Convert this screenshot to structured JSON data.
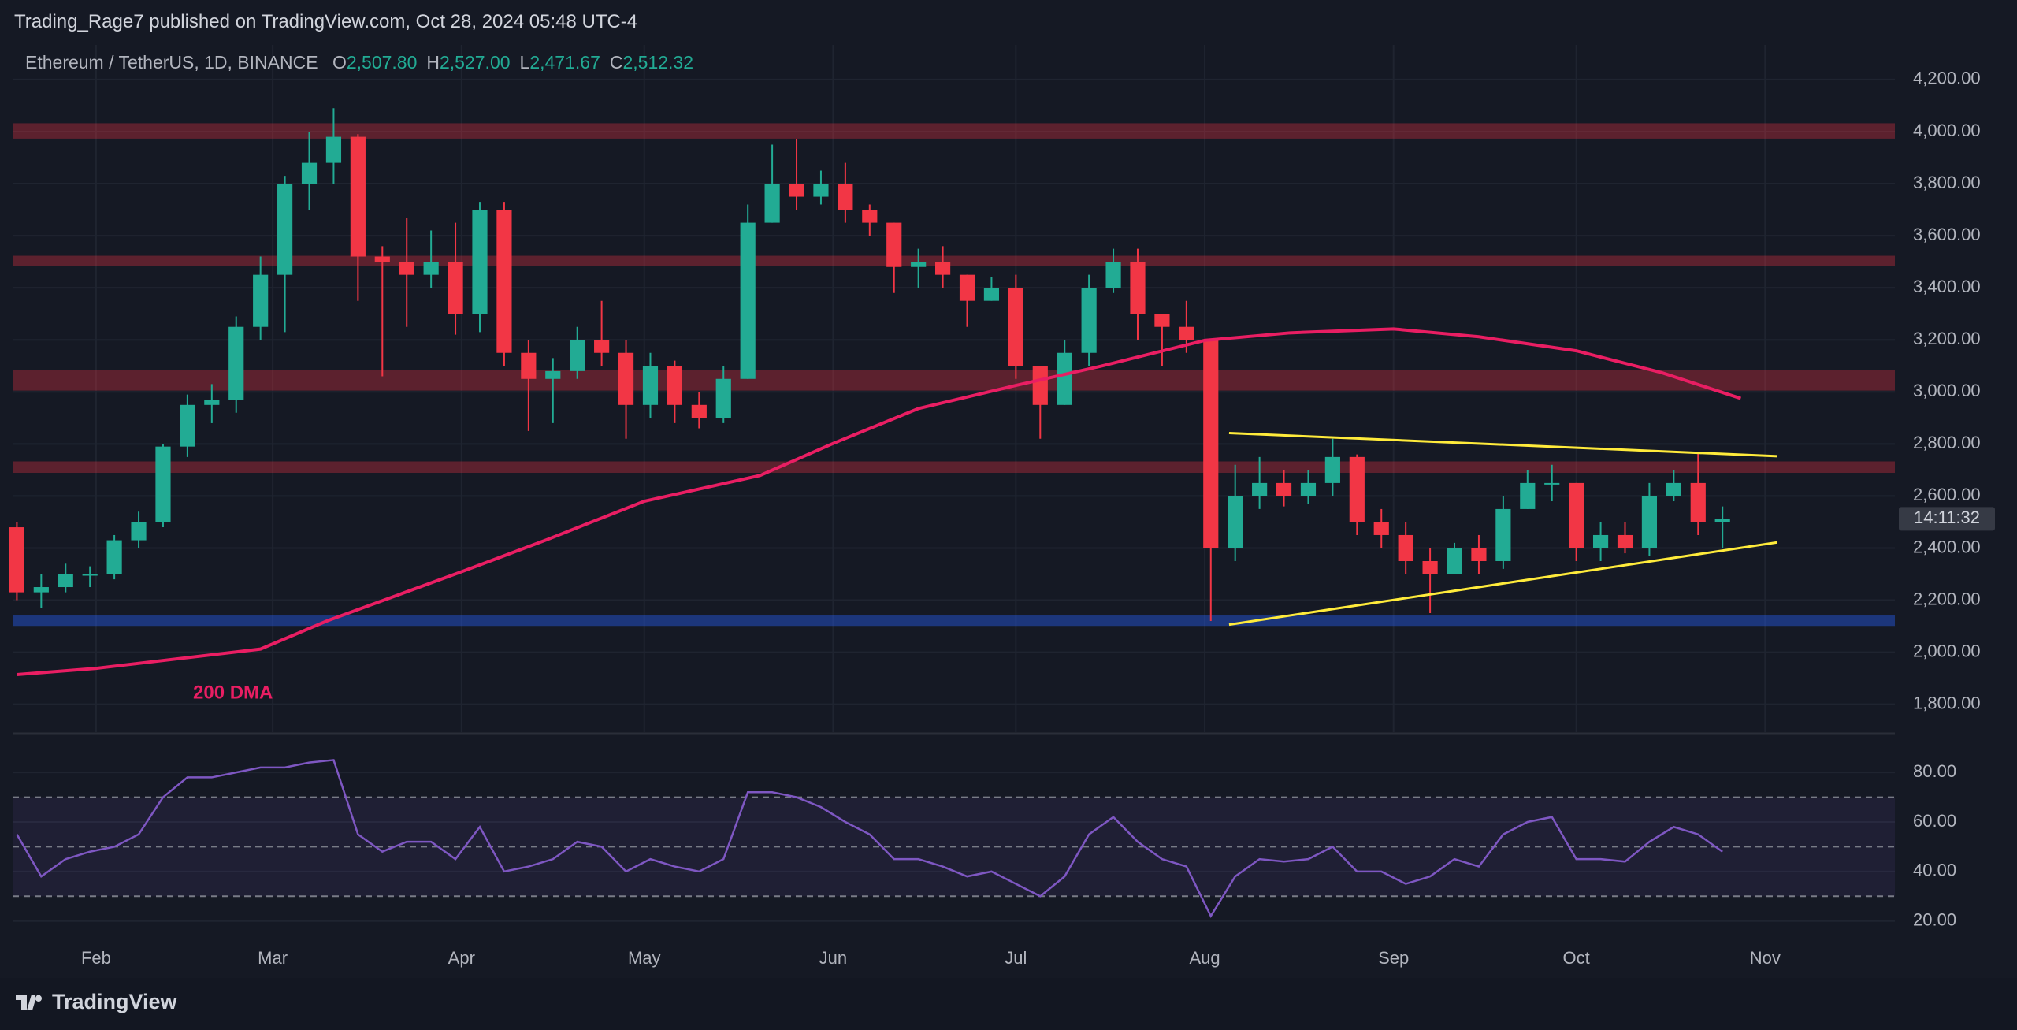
{
  "header": {
    "publisher": "Trading_Rage7 published on TradingView.com, Oct 28, 2024 05:48 UTC-4"
  },
  "chart_data": [
    {
      "type": "candlestick",
      "title": "Ethereum / TetherUS, 1D, BINANCE",
      "ohlc": {
        "names": [
          "O",
          "H",
          "L",
          "C"
        ],
        "values": [
          2507.8,
          2527,
          2471.67,
          2512.32
        ],
        "value_labels": [
          "2,507.80",
          "2,527.00",
          "2,471.67",
          "2,512.32"
        ]
      },
      "countdown": "14:11:32",
      "up_color": "#22ab94",
      "down_color": "#f23645",
      "x": [
        19,
        23,
        27,
        31,
        35,
        39,
        43,
        47,
        51,
        55,
        59,
        63,
        67,
        71,
        75,
        79,
        83,
        87,
        91,
        95,
        99,
        103,
        107,
        111,
        115,
        119,
        123,
        127,
        131,
        135,
        139,
        143,
        147,
        151,
        155,
        159,
        163,
        167,
        171,
        175,
        179,
        183,
        187,
        191,
        195,
        199,
        203,
        207,
        211,
        215,
        219,
        223,
        227,
        231,
        235,
        239,
        243,
        247,
        251,
        255,
        259,
        263,
        267,
        271,
        275,
        279,
        283,
        287,
        291,
        295,
        299
      ],
      "open": [
        2480,
        2230,
        2250,
        2300,
        2300,
        2430,
        2500,
        2790,
        2950,
        2970,
        3250,
        3450,
        3800,
        3880,
        3980,
        3520,
        3500,
        3450,
        3500,
        3300,
        3700,
        3150,
        3050,
        3080,
        3200,
        3150,
        2950,
        3100,
        2950,
        2900,
        3050,
        3650,
        3800,
        3750,
        3800,
        3700,
        3650,
        3480,
        3500,
        3450,
        3350,
        3400,
        3100,
        2950,
        3150,
        3400,
        3500,
        3300,
        3250,
        3200,
        2400,
        2600,
        2650,
        2600,
        2650,
        2750,
        2500,
        2450,
        2350,
        2300,
        2400,
        2350,
        2550,
        2650,
        2650,
        2400,
        2450,
        2400,
        2600,
        2650,
        2500
      ],
      "high": [
        2500,
        2300,
        2340,
        2330,
        2450,
        2540,
        2800,
        2990,
        3030,
        3290,
        3520,
        3830,
        4000,
        4090,
        3990,
        3560,
        3670,
        3620,
        3650,
        3730,
        3730,
        3200,
        3130,
        3250,
        3350,
        3200,
        3150,
        3120,
        3000,
        3100,
        3720,
        3950,
        3970,
        3850,
        3880,
        3720,
        3650,
        3550,
        3560,
        3450,
        3440,
        3450,
        3100,
        3200,
        3450,
        3550,
        3550,
        3300,
        3350,
        3200,
        2720,
        2750,
        2700,
        2700,
        2820,
        2760,
        2550,
        2500,
        2400,
        2420,
        2450,
        2600,
        2700,
        2720,
        2650,
        2500,
        2500,
        2650,
        2700,
        2770,
        2560
      ],
      "low": [
        2200,
        2170,
        2230,
        2250,
        2280,
        2400,
        2480,
        2750,
        2880,
        2920,
        3200,
        3230,
        3700,
        3800,
        3350,
        3060,
        3250,
        3400,
        3220,
        3230,
        3100,
        2850,
        2880,
        3050,
        3100,
        2820,
        2900,
        2880,
        2860,
        2880,
        3050,
        3650,
        3700,
        3720,
        3650,
        3600,
        3380,
        3400,
        3400,
        3250,
        3350,
        3050,
        2820,
        2950,
        3100,
        3380,
        3200,
        3100,
        3150,
        2120,
        2350,
        2550,
        2560,
        2570,
        2600,
        2450,
        2400,
        2300,
        2150,
        2300,
        2300,
        2320,
        2550,
        2580,
        2350,
        2350,
        2380,
        2370,
        2580,
        2450,
        2400
      ],
      "close": [
        2230,
        2250,
        2300,
        2300,
        2430,
        2500,
        2790,
        2950,
        2970,
        3250,
        3450,
        3800,
        3880,
        3980,
        3520,
        3500,
        3450,
        3500,
        3300,
        3700,
        3150,
        3050,
        3080,
        3200,
        3150,
        2950,
        3100,
        2950,
        2900,
        3050,
        3650,
        3800,
        3750,
        3800,
        3700,
        3650,
        3480,
        3500,
        3450,
        3350,
        3400,
        3100,
        2950,
        3150,
        3400,
        3500,
        3300,
        3250,
        3200,
        2400,
        2600,
        2650,
        2600,
        2650,
        2750,
        2500,
        2450,
        2350,
        2300,
        2400,
        2350,
        2550,
        2650,
        2650,
        2400,
        2450,
        2400,
        2600,
        2650,
        2500,
        2512.32
      ],
      "ma": {
        "name": "200 DMA",
        "color": "#e91e63",
        "x": [
          19,
          32,
          59,
          70,
          92,
          106,
          122,
          141,
          153,
          167,
          183,
          197,
          214,
          228,
          245,
          259,
          275,
          289,
          302
        ],
        "values": [
          1914,
          1938,
          2012,
          2121,
          2309,
          2432,
          2580,
          2679,
          2802,
          2936,
          3025,
          3099,
          3198,
          3227,
          3242,
          3212,
          3158,
          3074,
          2975
        ]
      },
      "zones": [
        {
          "low": 3973,
          "high": 4032,
          "color": "rgba(242,54,69,0.32)"
        },
        {
          "low": 3484,
          "high": 3523,
          "color": "rgba(242,54,69,0.32)"
        },
        {
          "low": 3005,
          "high": 3084,
          "color": "rgba(242,54,69,0.32)"
        },
        {
          "low": 2689,
          "high": 2733,
          "color": "rgba(242,54,69,0.32)"
        },
        {
          "low": 2101,
          "high": 2141,
          "color": "rgba(41,98,255,0.4)"
        }
      ],
      "trendlines": {
        "color": "#ffeb3b",
        "lines": [
          {
            "x": [
              218,
              308
            ],
            "values": [
              2842,
              2753
            ]
          },
          {
            "x": [
              218,
              308
            ],
            "values": [
              2106,
              2422
            ]
          }
        ]
      },
      "xlim": [
        18.3,
        327.3
      ],
      "ylim": [
        1693,
        4333
      ],
      "yticks": [
        {
          "value": 1800,
          "label": "1,800.00"
        },
        {
          "value": 2000,
          "label": "2,000.00"
        },
        {
          "value": 2200,
          "label": "2,200.00"
        },
        {
          "value": 2400,
          "label": "2,400.00"
        },
        {
          "value": 2600,
          "label": "2,600.00"
        },
        {
          "value": 2800,
          "label": "2,800.00"
        },
        {
          "value": 3000,
          "label": "3,000.00"
        },
        {
          "value": 3200,
          "label": "3,200.00"
        },
        {
          "value": 3400,
          "label": "3,400.00"
        },
        {
          "value": 3600,
          "label": "3,600.00"
        },
        {
          "value": 3800,
          "label": "3,800.00"
        },
        {
          "value": 4000,
          "label": "4,000.00"
        },
        {
          "value": 4200,
          "label": "4,200.00"
        }
      ],
      "xticks": [
        {
          "value": 32,
          "label": "Feb"
        },
        {
          "value": 61,
          "label": "Mar"
        },
        {
          "value": 92,
          "label": "Apr"
        },
        {
          "value": 122,
          "label": "May"
        },
        {
          "value": 153,
          "label": "Jun"
        },
        {
          "value": 183,
          "label": "Jul"
        },
        {
          "value": 214,
          "label": "Aug"
        },
        {
          "value": 245,
          "label": "Sep"
        },
        {
          "value": 275,
          "label": "Oct"
        },
        {
          "value": 306,
          "label": "Nov"
        }
      ],
      "grid": true
    },
    {
      "type": "line",
      "color": "#7e57c2",
      "x": [
        19,
        23,
        27,
        31,
        35,
        39,
        43,
        47,
        51,
        55,
        59,
        63,
        67,
        71,
        75,
        79,
        83,
        87,
        91,
        95,
        99,
        103,
        107,
        111,
        115,
        119,
        123,
        127,
        131,
        135,
        139,
        143,
        147,
        151,
        155,
        159,
        163,
        167,
        171,
        175,
        179,
        183,
        187,
        191,
        195,
        199,
        203,
        207,
        211,
        215,
        219,
        223,
        227,
        231,
        235,
        239,
        243,
        247,
        251,
        255,
        259,
        263,
        267,
        271,
        275,
        279,
        283,
        287,
        291,
        295,
        299
      ],
      "values": [
        55,
        38,
        45,
        48,
        50,
        55,
        70,
        78,
        78,
        80,
        82,
        82,
        84,
        85,
        55,
        48,
        52,
        52,
        45,
        58,
        40,
        42,
        45,
        52,
        50,
        40,
        45,
        42,
        40,
        45,
        72,
        72,
        70,
        66,
        60,
        55,
        45,
        45,
        42,
        38,
        40,
        35,
        30,
        38,
        55,
        62,
        52,
        45,
        42,
        22,
        38,
        45,
        44,
        45,
        50,
        40,
        40,
        35,
        38,
        45,
        42,
        55,
        60,
        62,
        45,
        45,
        44,
        52,
        58,
        55,
        48
      ],
      "band": [
        30,
        70
      ],
      "midline": 50,
      "xlim": [
        18.3,
        327.3
      ],
      "ylim": [
        11,
        95
      ],
      "yticks": [
        {
          "value": 20,
          "label": "20.00"
        },
        {
          "value": 40,
          "label": "40.00"
        },
        {
          "value": 60,
          "label": "60.00"
        },
        {
          "value": 80,
          "label": "80.00"
        }
      ],
      "grid": true
    }
  ],
  "footer": {
    "brand": "TradingView"
  }
}
